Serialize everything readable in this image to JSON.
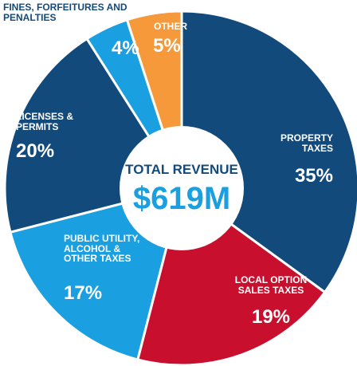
{
  "chart_data": {
    "type": "donut",
    "center_title": "TOTAL REVENUE",
    "center_value": "$619M",
    "categories": [
      "PROPERTY TAXES",
      "LOCAL OPTION SALES TAXES",
      "PUBLIC UTILITY, ALCOHOL & OTHER TAXES",
      "LICENSES & PERMITS",
      "FINES, FORFEITURES AND PENALTIES",
      "OTHER"
    ],
    "values": [
      35,
      19,
      17,
      20,
      4,
      5
    ],
    "value_labels": [
      "35%",
      "19%",
      "17%",
      "20%",
      "4%",
      "5%"
    ],
    "colors": [
      "#134a7c",
      "#c8102e",
      "#1a9fe0",
      "#134a7c",
      "#1a9fe0",
      "#f5993a"
    ]
  }
}
